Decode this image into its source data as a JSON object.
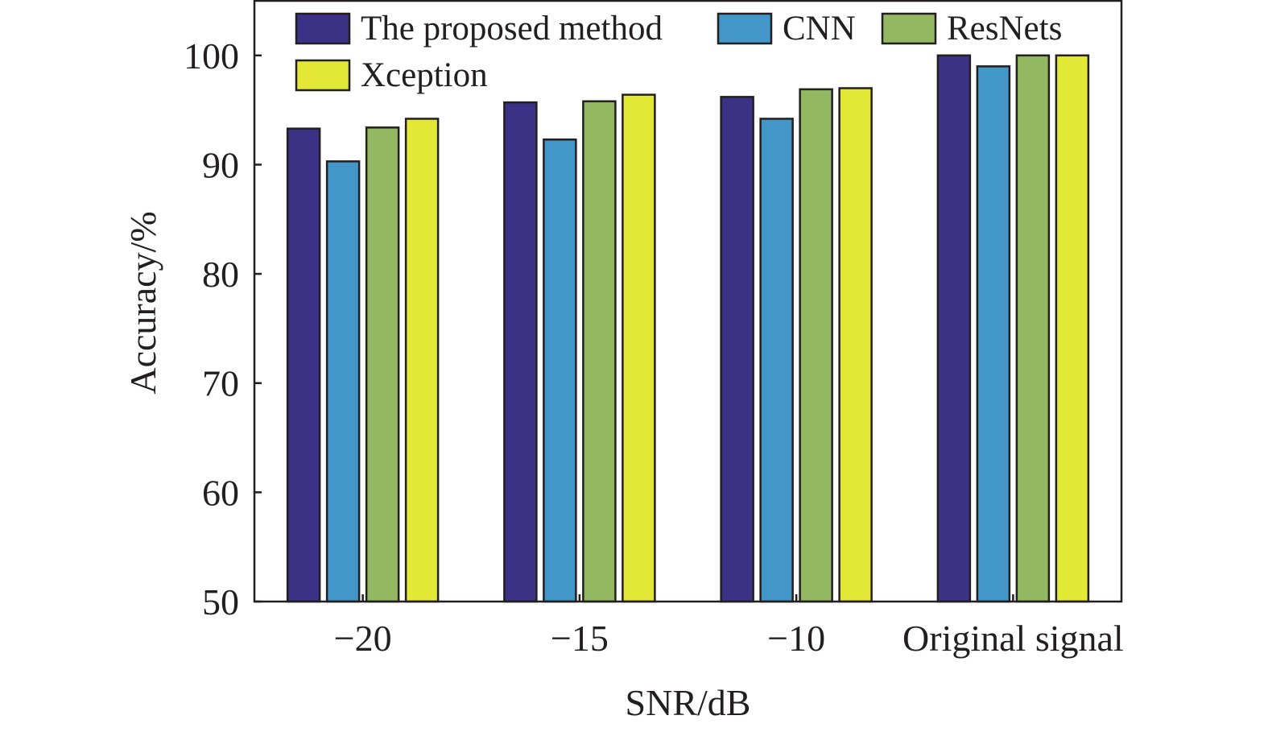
{
  "chart_data": {
    "type": "bar",
    "categories": [
      "−20",
      "−15",
      "−10",
      "Original signal"
    ],
    "series": [
      {
        "name": "The proposed method",
        "color": "#3b3185",
        "values": [
          93.3,
          95.7,
          96.2,
          100
        ]
      },
      {
        "name": "CNN",
        "color": "#4396c8",
        "values": [
          90.3,
          92.3,
          94.2,
          99.0
        ]
      },
      {
        "name": "ResNets",
        "color": "#92b862",
        "values": [
          93.4,
          95.8,
          96.9,
          100
        ]
      },
      {
        "name": "Xception",
        "color": "#e3e836",
        "values": [
          94.2,
          96.4,
          97.0,
          100
        ]
      }
    ],
    "xlabel": "SNR/dB",
    "ylabel": "Accuracy/%",
    "ylim": [
      50,
      105
    ],
    "yticks": [
      "50",
      "60",
      "70",
      "80",
      "90",
      "100"
    ],
    "grid": false,
    "legend_position": "top"
  }
}
